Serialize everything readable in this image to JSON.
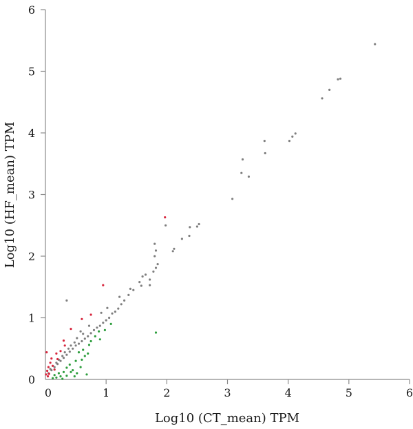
{
  "chart_data": {
    "type": "scatter",
    "title": "",
    "xlabel": "Log10 (CT_mean) TPM",
    "ylabel": "Log10 (HF_mean) TPM",
    "xlim": [
      0,
      6
    ],
    "ylim": [
      0,
      6
    ],
    "xticks": [
      "0",
      "1",
      "2",
      "3",
      "4",
      "5",
      "6"
    ],
    "yticks": [
      "0",
      "1",
      "2",
      "3",
      "4",
      "5",
      "6"
    ],
    "grid": false,
    "legend": "none",
    "colors": {
      "neutral": "#7f7f7f",
      "up": "#d7263d",
      "down": "#2e9e3e"
    },
    "series": [
      {
        "color_key": "neutral",
        "points": [
          [
            5.43,
            5.44
          ],
          [
            4.86,
            4.88
          ],
          [
            4.82,
            4.87
          ],
          [
            4.68,
            4.7
          ],
          [
            4.56,
            4.56
          ],
          [
            4.12,
            3.99
          ],
          [
            4.07,
            3.94
          ],
          [
            4.02,
            3.87
          ],
          [
            3.61,
            3.87
          ],
          [
            3.62,
            3.67
          ],
          [
            3.25,
            3.57
          ],
          [
            3.23,
            3.35
          ],
          [
            3.35,
            3.29
          ],
          [
            3.08,
            2.93
          ],
          [
            2.53,
            2.52
          ],
          [
            2.5,
            2.48
          ],
          [
            2.38,
            2.47
          ],
          [
            1.98,
            2.5
          ],
          [
            2.37,
            2.33
          ],
          [
            2.25,
            2.28
          ],
          [
            2.12,
            2.12
          ],
          [
            2.1,
            2.08
          ],
          [
            1.8,
            2.2
          ],
          [
            1.82,
            2.09
          ],
          [
            1.8,
            2.0
          ],
          [
            1.85,
            1.87
          ],
          [
            1.82,
            1.81
          ],
          [
            1.78,
            1.75
          ],
          [
            1.72,
            1.62
          ],
          [
            1.65,
            1.7
          ],
          [
            1.6,
            1.67
          ],
          [
            1.55,
            1.58
          ],
          [
            1.45,
            1.45
          ],
          [
            1.37,
            1.37
          ],
          [
            1.3,
            1.28
          ],
          [
            1.25,
            1.22
          ],
          [
            1.2,
            1.15
          ],
          [
            1.15,
            1.1
          ],
          [
            1.1,
            1.07
          ],
          [
            1.05,
            1.0
          ],
          [
            1.0,
            0.96
          ],
          [
            0.95,
            0.92
          ],
          [
            0.9,
            0.87
          ],
          [
            0.85,
            0.84
          ],
          [
            0.8,
            0.8
          ],
          [
            0.75,
            0.75
          ],
          [
            0.7,
            0.7
          ],
          [
            0.65,
            0.66
          ],
          [
            0.6,
            0.62
          ],
          [
            0.55,
            0.58
          ],
          [
            0.5,
            0.55
          ],
          [
            0.45,
            0.5
          ],
          [
            0.4,
            0.45
          ],
          [
            0.35,
            0.4
          ],
          [
            0.3,
            0.35
          ],
          [
            0.25,
            0.3
          ],
          [
            0.2,
            0.25
          ],
          [
            0.15,
            0.2
          ],
          [
            0.1,
            0.15
          ],
          [
            0.05,
            0.1
          ],
          [
            0.35,
            1.28
          ],
          [
            1.72,
            1.53
          ],
          [
            1.22,
            1.34
          ],
          [
            1.58,
            1.52
          ],
          [
            1.4,
            1.47
          ],
          [
            0.92,
            1.08
          ],
          [
            1.02,
            1.16
          ],
          [
            0.72,
            0.87
          ],
          [
            0.62,
            0.74
          ],
          [
            0.52,
            0.67
          ],
          [
            0.48,
            0.6
          ],
          [
            0.42,
            0.55
          ],
          [
            0.38,
            0.5
          ],
          [
            0.32,
            0.44
          ],
          [
            0.28,
            0.38
          ],
          [
            0.22,
            0.32
          ],
          [
            0.18,
            0.27
          ],
          [
            0.12,
            0.22
          ],
          [
            0.08,
            0.17
          ],
          [
            0.58,
            0.78
          ]
        ]
      },
      {
        "color_key": "up",
        "points": [
          [
            1.97,
            2.63
          ],
          [
            0.95,
            1.53
          ],
          [
            0.75,
            1.05
          ],
          [
            0.42,
            0.82
          ],
          [
            0.3,
            0.63
          ],
          [
            0.18,
            0.42
          ],
          [
            0.1,
            0.34
          ],
          [
            0.08,
            0.27
          ],
          [
            0.05,
            0.2
          ],
          [
            0.12,
            0.22
          ],
          [
            0.03,
            0.14
          ],
          [
            0.06,
            0.09
          ],
          [
            0.15,
            0.16
          ],
          [
            0.02,
            0.44
          ],
          [
            0.2,
            0.33
          ],
          [
            0.25,
            0.46
          ],
          [
            0.01,
            0.08
          ],
          [
            0.04,
            0.05
          ],
          [
            0.32,
            0.55
          ],
          [
            0.6,
            0.98
          ]
        ]
      },
      {
        "color_key": "down",
        "points": [
          [
            1.82,
            0.76
          ],
          [
            1.08,
            0.9
          ],
          [
            0.88,
            0.78
          ],
          [
            0.72,
            0.56
          ],
          [
            0.65,
            0.38
          ],
          [
            0.58,
            0.2
          ],
          [
            0.5,
            0.3
          ],
          [
            0.45,
            0.15
          ],
          [
            0.42,
            0.12
          ],
          [
            0.35,
            0.06
          ],
          [
            0.3,
            0.12
          ],
          [
            0.25,
            0.05
          ],
          [
            0.22,
            0.1
          ],
          [
            0.18,
            0.03
          ],
          [
            0.15,
            0.07
          ],
          [
            0.12,
            0.02
          ],
          [
            0.4,
            0.24
          ],
          [
            0.55,
            0.44
          ],
          [
            0.62,
            0.48
          ],
          [
            0.75,
            0.62
          ],
          [
            0.82,
            0.7
          ],
          [
            0.98,
            0.8
          ],
          [
            0.68,
            0.08
          ],
          [
            0.9,
            0.65
          ],
          [
            0.35,
            0.19
          ],
          [
            0.48,
            0.05
          ],
          [
            0.28,
            0.01
          ],
          [
            0.6,
            0.32
          ],
          [
            0.7,
            0.42
          ],
          [
            0.52,
            0.1
          ]
        ]
      }
    ]
  }
}
